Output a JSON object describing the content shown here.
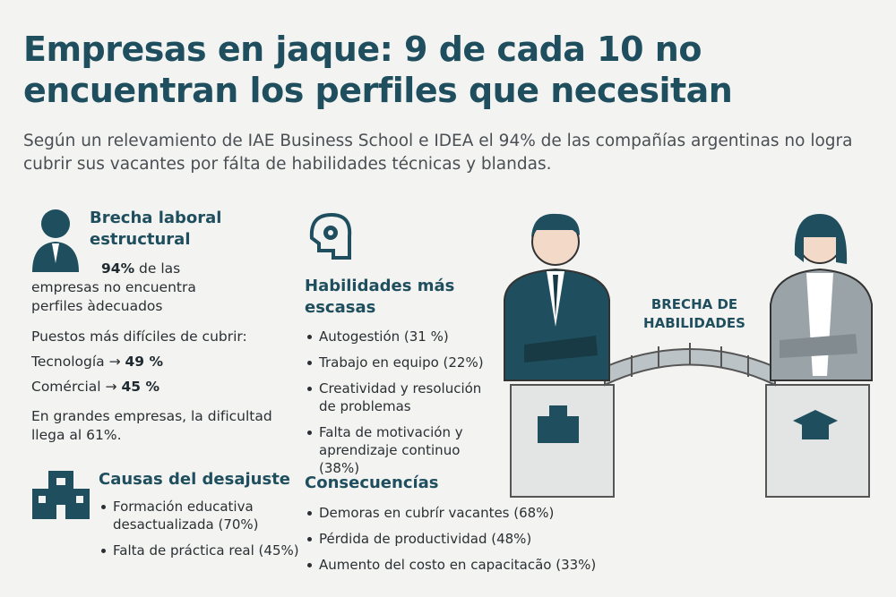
{
  "header": {
    "title": "Empresas en jaque: 9 de cada 10 no encuentran los perfiles que necesitan",
    "subtitle": "Según un relevamiento de IAE Business School e IDEA el 94% de las compañías argentinas no logra cubrir sus vacantes por fálta de habilidades técnicas y blandas."
  },
  "gap": {
    "heading": "Brecha laboral estructural",
    "stat_value": "94%",
    "stat_text": "de las empresas no encuentra perfiles àdecuados",
    "roles_label": "Puestos más difíciles de cubrir:",
    "roles": [
      {
        "name": "Tecnología",
        "arrow": "→",
        "value": "49 %"
      },
      {
        "name": "Comércial",
        "arrow": "→",
        "value": "45 %"
      }
    ],
    "note": "En grandes empresas, la dificultad llega al 61%."
  },
  "causes": {
    "heading": "Causas del desajuste",
    "items": [
      "Formación educativa desactualizada (70%)",
      "Falta de práctica real (45%)"
    ]
  },
  "skills": {
    "heading": "Habilidades más escasas",
    "items": [
      "Autogestión (31 %)",
      "Trabajo en equipo (22%)",
      "Creatividad y resolución de problemas",
      "Falta de motivación y aprendizaje continuo (38%)"
    ]
  },
  "consequences": {
    "heading": "Consecuencías",
    "items": [
      "Demoras en cubrír vacantes (68%)",
      "Pérdida de productividad (48%)",
      "Aumento del costo en capacitacão (33%)"
    ]
  },
  "illustration": {
    "label": "BRECHA DE HABILIDADES"
  }
}
